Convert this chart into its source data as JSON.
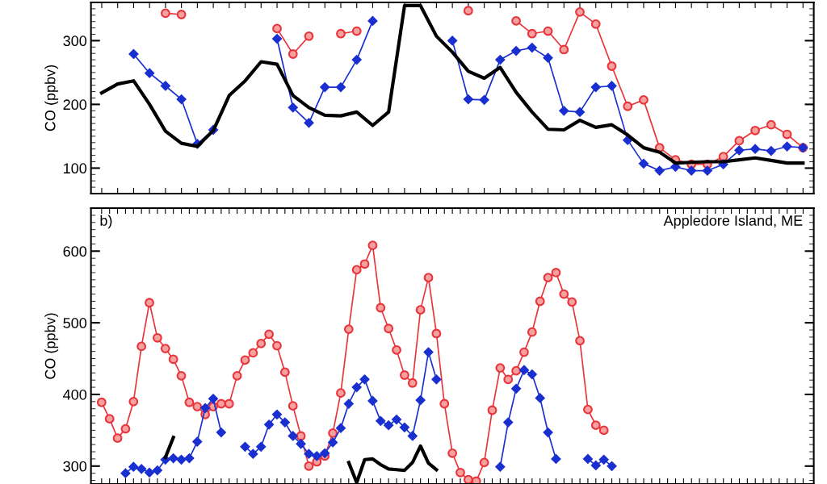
{
  "chart_data": [
    {
      "type": "line",
      "ylabel": "CO (ppbv)",
      "ylim": [
        60,
        360
      ],
      "yticks": [
        100,
        200,
        300
      ],
      "grid": false,
      "legend": false,
      "tick_labels": "y",
      "categories": [
        null,
        null,
        null,
        null,
        null,
        null,
        null,
        null,
        null,
        null,
        null,
        null,
        null,
        null,
        null,
        null,
        null,
        null,
        null,
        null,
        null,
        null,
        null,
        null,
        null,
        null,
        null,
        null,
        null,
        null,
        null,
        null,
        null,
        null,
        null,
        null,
        null,
        null,
        null,
        null,
        null,
        null,
        null,
        null,
        null
      ],
      "series": [
        {
          "color": "#e8343a",
          "marker": "circle",
          "values": [
            null,
            null,
            null,
            null,
            343,
            341,
            null,
            null,
            null,
            null,
            null,
            319,
            279,
            307,
            null,
            311,
            315,
            null,
            null,
            null,
            null,
            null,
            null,
            347,
            null,
            null,
            331,
            311,
            315,
            286,
            345,
            326,
            260,
            197,
            207,
            132,
            113,
            106,
            106,
            118,
            143,
            159,
            168,
            153,
            132
          ]
        },
        {
          "color": "#1a2fd0",
          "marker": "diamond",
          "values": [
            null,
            null,
            279,
            249,
            229,
            208,
            138,
            160,
            null,
            null,
            null,
            303,
            195,
            171,
            227,
            227,
            270,
            331,
            null,
            null,
            null,
            null,
            300,
            208,
            207,
            270,
            284,
            289,
            273,
            190,
            188,
            227,
            229,
            144,
            107,
            96,
            102,
            96,
            96,
            106,
            128,
            130,
            127,
            134,
            132
          ]
        },
        {
          "color": "#000000",
          "marker": "none",
          "values": [
            218,
            232,
            237,
            200,
            158,
            139,
            134,
            159,
            214,
            237,
            267,
            263,
            214,
            195,
            183,
            182,
            188,
            167,
            188,
            355,
            355,
            307,
            282,
            252,
            241,
            258,
            219,
            188,
            161,
            160,
            175,
            164,
            168,
            152,
            132,
            125,
            108,
            109,
            110,
            110,
            113,
            116,
            112,
            108,
            108
          ]
        }
      ]
    },
    {
      "type": "line",
      "ylabel": "CO (ppbv)",
      "ylim": [
        275,
        660
      ],
      "yticks": [
        300,
        400,
        500,
        600
      ],
      "grid": false,
      "legend": false,
      "tick_labels": "y",
      "annotations": [
        "b)",
        "Appledore Island, ME"
      ],
      "categories": [
        null,
        null,
        null,
        null,
        null,
        null,
        null,
        null,
        null,
        null,
        null,
        null,
        null,
        null,
        null,
        null,
        null,
        null,
        null,
        null,
        null,
        null,
        null,
        null,
        null,
        null,
        null,
        null,
        null,
        null,
        null,
        null,
        null,
        null,
        null,
        null,
        null,
        null,
        null,
        null,
        null,
        null,
        null,
        null,
        null,
        null,
        null,
        null,
        null,
        null,
        null,
        null,
        null,
        null,
        null,
        null,
        null,
        null,
        null,
        null,
        null,
        null,
        null,
        null,
        null,
        null,
        null,
        null,
        null,
        null,
        null,
        null,
        null,
        null,
        null,
        null,
        null,
        null,
        null,
        null,
        null,
        null,
        null,
        null,
        null,
        null,
        null,
        null,
        null
      ],
      "series": [
        {
          "color": "#e8343a",
          "marker": "circle",
          "values": [
            389,
            366,
            339,
            352,
            390,
            467,
            528,
            479,
            464,
            449,
            426,
            389,
            383,
            372,
            383,
            387,
            387,
            426,
            448,
            458,
            471,
            484,
            468,
            431,
            384,
            342,
            300,
            306,
            314,
            346,
            402,
            491,
            574,
            582,
            608,
            521,
            492,
            462,
            427,
            416,
            518,
            563,
            485,
            387,
            318,
            291,
            281,
            279,
            305,
            378,
            437,
            421,
            433,
            459,
            487,
            530,
            563,
            570,
            540,
            529,
            475,
            379,
            357,
            350,
            null,
            null,
            null,
            null,
            null,
            null,
            null,
            null,
            null,
            null,
            null,
            null,
            null,
            null,
            null,
            null,
            null,
            null,
            null,
            null,
            null,
            null,
            null,
            null,
            null
          ]
        },
        {
          "color": "#1a2fd0",
          "marker": "diamond",
          "values": [
            null,
            null,
            null,
            290,
            299,
            296,
            291,
            294,
            309,
            311,
            309,
            311,
            334,
            381,
            394,
            347,
            null,
            null,
            327,
            317,
            327,
            358,
            372,
            361,
            342,
            331,
            317,
            314,
            318,
            333,
            353,
            387,
            410,
            421,
            391,
            363,
            357,
            365,
            354,
            342,
            392,
            459,
            421,
            null,
            null,
            null,
            null,
            null,
            null,
            null,
            299,
            361,
            408,
            434,
            428,
            395,
            347,
            310,
            null,
            null,
            null,
            310,
            301,
            309,
            300,
            null,
            null,
            null,
            null,
            null,
            null,
            null,
            null,
            null,
            null,
            null,
            null,
            null,
            null,
            null,
            null,
            null,
            null,
            null,
            null,
            null,
            null,
            null,
            null
          ]
        },
        {
          "color": "#000000",
          "marker": "none",
          "values": [
            null,
            null,
            null,
            null,
            null,
            null,
            null,
            null,
            312,
            340,
            null,
            null,
            null,
            null,
            null,
            null,
            null,
            null,
            null,
            null,
            null,
            null,
            null,
            null,
            null,
            null,
            null,
            null,
            null,
            null,
            null,
            305,
            277,
            309,
            310,
            302,
            296,
            295,
            294,
            305,
            328,
            304,
            295,
            null,
            null,
            null,
            null,
            null,
            null,
            null,
            null,
            null,
            null,
            null,
            null,
            null,
            null,
            null,
            null,
            null,
            null,
            null,
            null,
            null,
            null,
            null,
            null,
            null,
            null,
            null,
            null,
            null,
            null,
            null,
            null,
            null,
            null,
            null,
            null,
            null,
            null,
            null,
            null,
            null,
            null,
            null,
            null,
            null,
            null
          ]
        }
      ]
    }
  ]
}
